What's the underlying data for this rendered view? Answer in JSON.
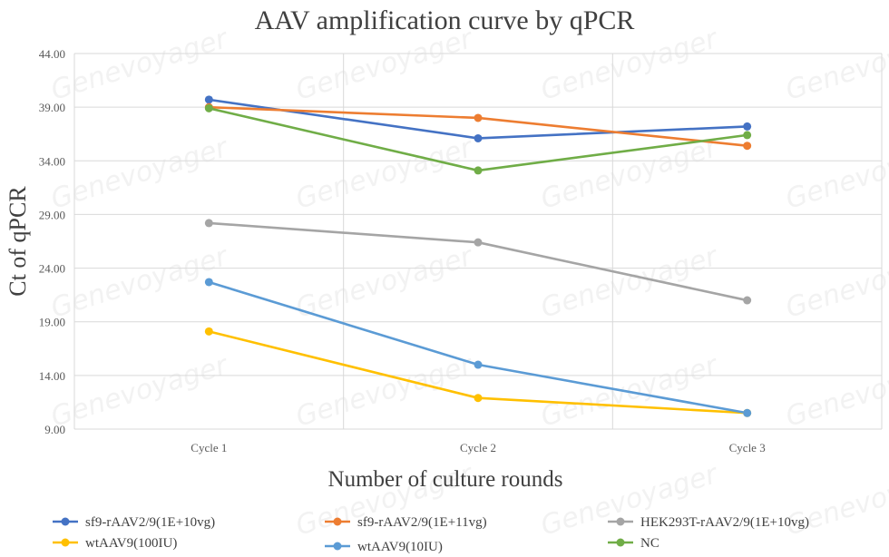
{
  "chart_data": {
    "type": "line",
    "title": "AAV amplification curve by qPCR",
    "xlabel": "Number of culture rounds",
    "ylabel": "Ct of qPCR",
    "categories": [
      "Cycle 1",
      "Cycle 2",
      "Cycle 3"
    ],
    "ylim": [
      9,
      44
    ],
    "yticks": [
      "9.00",
      "14.00",
      "19.00",
      "24.00",
      "29.00",
      "34.00",
      "39.00",
      "44.00"
    ],
    "grid": true,
    "legend_position": "bottom",
    "series": [
      {
        "name": "sf9-rAAV2/9(1E+10vg)",
        "color": "#4472c4",
        "values": [
          39.7,
          36.1,
          37.2
        ]
      },
      {
        "name": "sf9-rAAV2/9(1E+11vg)",
        "color": "#ed7d31",
        "values": [
          39.0,
          38.0,
          35.4
        ]
      },
      {
        "name": "HEK293T-rAAV2/9(1E+10vg)",
        "color": "#a5a5a5",
        "values": [
          28.2,
          26.4,
          21.0
        ]
      },
      {
        "name": "wtAAV9(100IU)",
        "color": "#ffc000",
        "values": [
          18.1,
          11.9,
          10.5
        ]
      },
      {
        "name": "wtAAV9(10IU)",
        "color": "#5b9bd5",
        "values": [
          22.7,
          15.0,
          10.5
        ]
      },
      {
        "name": "NC",
        "color": "#70ad47",
        "values": [
          38.9,
          33.1,
          36.4
        ]
      }
    ],
    "watermark": "Genevoyager"
  }
}
